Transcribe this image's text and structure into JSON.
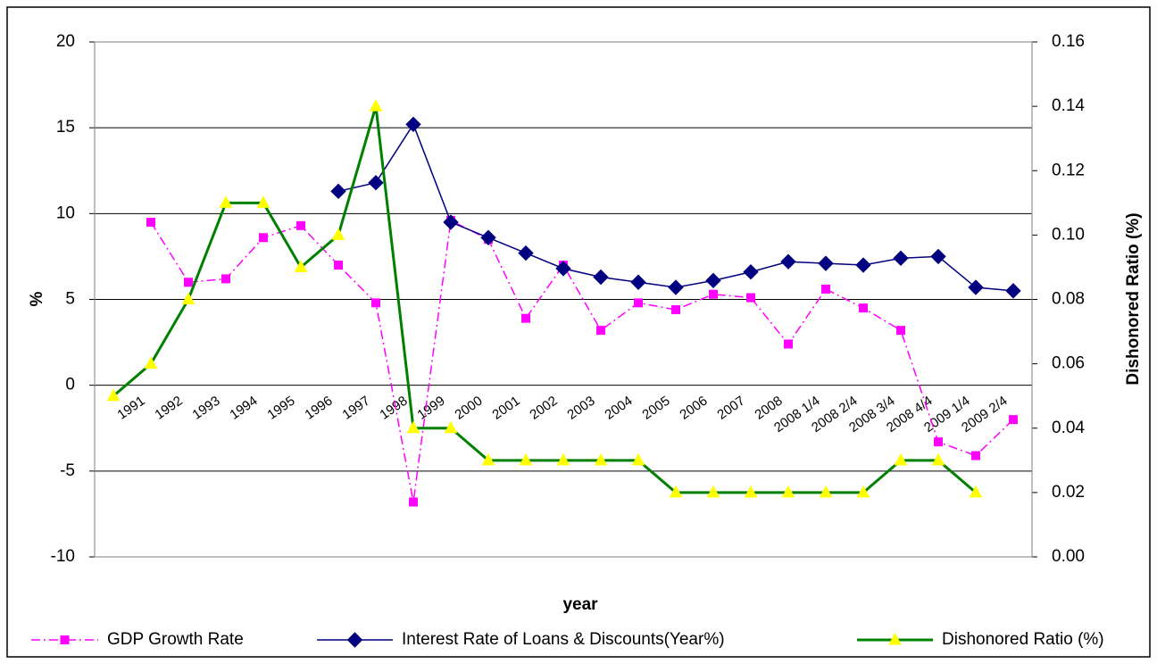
{
  "chart_data": {
    "type": "line",
    "x_label": "year",
    "y_label": "%",
    "y2_label": "Dishonored Ratio (%)",
    "categories": [
      null,
      "1991",
      "1992",
      "1993",
      "1994",
      "1995",
      "1996",
      "1997",
      "1998",
      "1999",
      "2000",
      "2001",
      "2002",
      "2003",
      "2004",
      "2005",
      "2006",
      "2007",
      "2008",
      "2008 1/4",
      "2008 2/4",
      "2008 3/4",
      "2008 4/4",
      "2009 1/4",
      "2009 2/4"
    ],
    "ylim": [
      -10,
      20
    ],
    "yticks": [
      -10,
      -5,
      0,
      5,
      10,
      15,
      20
    ],
    "y2lim": [
      0,
      0.16
    ],
    "y2ticks": [
      {
        "value": 0,
        "label": "0.00"
      },
      0.02,
      0.04,
      0.06,
      0.08,
      {
        "value": 0.1,
        "label": "0.10"
      },
      0.12,
      0.14,
      0.16
    ],
    "grid": true,
    "legend": "bottom",
    "series": [
      {
        "name": "GDP Growth Rate",
        "color": "#ff00ff",
        "marker": "square",
        "dash": true,
        "values": [
          null,
          9.5,
          6.0,
          6.2,
          8.6,
          9.3,
          7.0,
          4.8,
          -6.8,
          9.6,
          8.5,
          3.9,
          7.0,
          3.2,
          4.8,
          4.4,
          5.3,
          5.1,
          2.4,
          5.6,
          4.5,
          3.2,
          -3.3,
          -4.1,
          -2.0
        ]
      },
      {
        "name": "Interest Rate of Loans & Discounts(Year%)",
        "color": "#000080",
        "marker": "diamond",
        "values": [
          null,
          null,
          null,
          null,
          null,
          null,
          11.3,
          11.8,
          15.2,
          9.5,
          8.6,
          7.7,
          6.8,
          6.3,
          6.0,
          5.7,
          6.1,
          6.6,
          7.2,
          7.1,
          7.0,
          7.4,
          7.5,
          5.7,
          5.5
        ]
      },
      {
        "name": "Dishonored Ratio (%)",
        "color": "#008000",
        "marker": "triangle",
        "marker_color": "#ffff00",
        "axis": "y2",
        "values": [
          0.05,
          0.06,
          0.08,
          0.11,
          0.11,
          0.09,
          0.1,
          0.14,
          0.04,
          0.04,
          0.03,
          0.03,
          0.03,
          0.03,
          0.03,
          0.02,
          0.02,
          0.02,
          0.02,
          0.02,
          0.02,
          0.03,
          0.03,
          0.02,
          null
        ]
      }
    ]
  }
}
